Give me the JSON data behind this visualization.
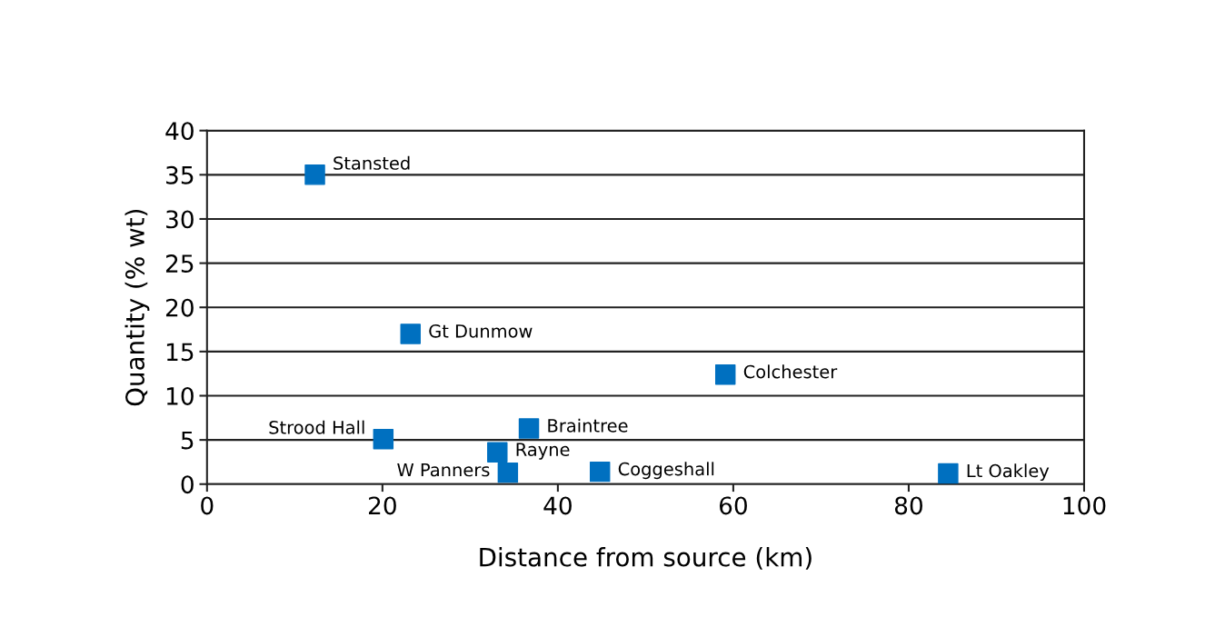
{
  "chart_data": {
    "type": "scatter",
    "xlabel": "Distance from source (km)",
    "ylabel": "Quantity (% wt)",
    "series": [
      {
        "color": "#0070c0",
        "x": [
          12.3,
          23.2,
          59.1,
          20.1,
          36.7,
          33.1,
          34.3,
          44.8,
          84.5
        ],
        "values": [
          35,
          17,
          12.4,
          5.1,
          6.3,
          3.6,
          1.3,
          1.4,
          1.2
        ]
      }
    ],
    "annotations": [
      {
        "text": "Stansted",
        "x": 12.3,
        "y": 35
      },
      {
        "text": "Gt Dunmow",
        "x": 23.2,
        "y": 17
      },
      {
        "text": "Colchester",
        "x": 59.1,
        "y": 12.4
      },
      {
        "text": "Strood Hall",
        "x": 20.1,
        "y": 5.1
      },
      {
        "text": "Braintree",
        "x": 36.7,
        "y": 6.3
      },
      {
        "text": "Rayne",
        "x": 33.1,
        "y": 3.6
      },
      {
        "text": "W Panners",
        "x": 34.3,
        "y": 1.3
      },
      {
        "text": "Coggeshall",
        "x": 44.8,
        "y": 1.4
      },
      {
        "text": "Lt Oakley",
        "x": 84.5,
        "y": 1.2
      }
    ],
    "xlim": [
      0,
      100
    ],
    "xticks": [
      0,
      20,
      40,
      60,
      80,
      100
    ],
    "ylim": [
      0,
      40
    ],
    "yticks": [
      0,
      5,
      10,
      15,
      20,
      25,
      30,
      35,
      40
    ],
    "grid": "y",
    "marker": "square"
  }
}
